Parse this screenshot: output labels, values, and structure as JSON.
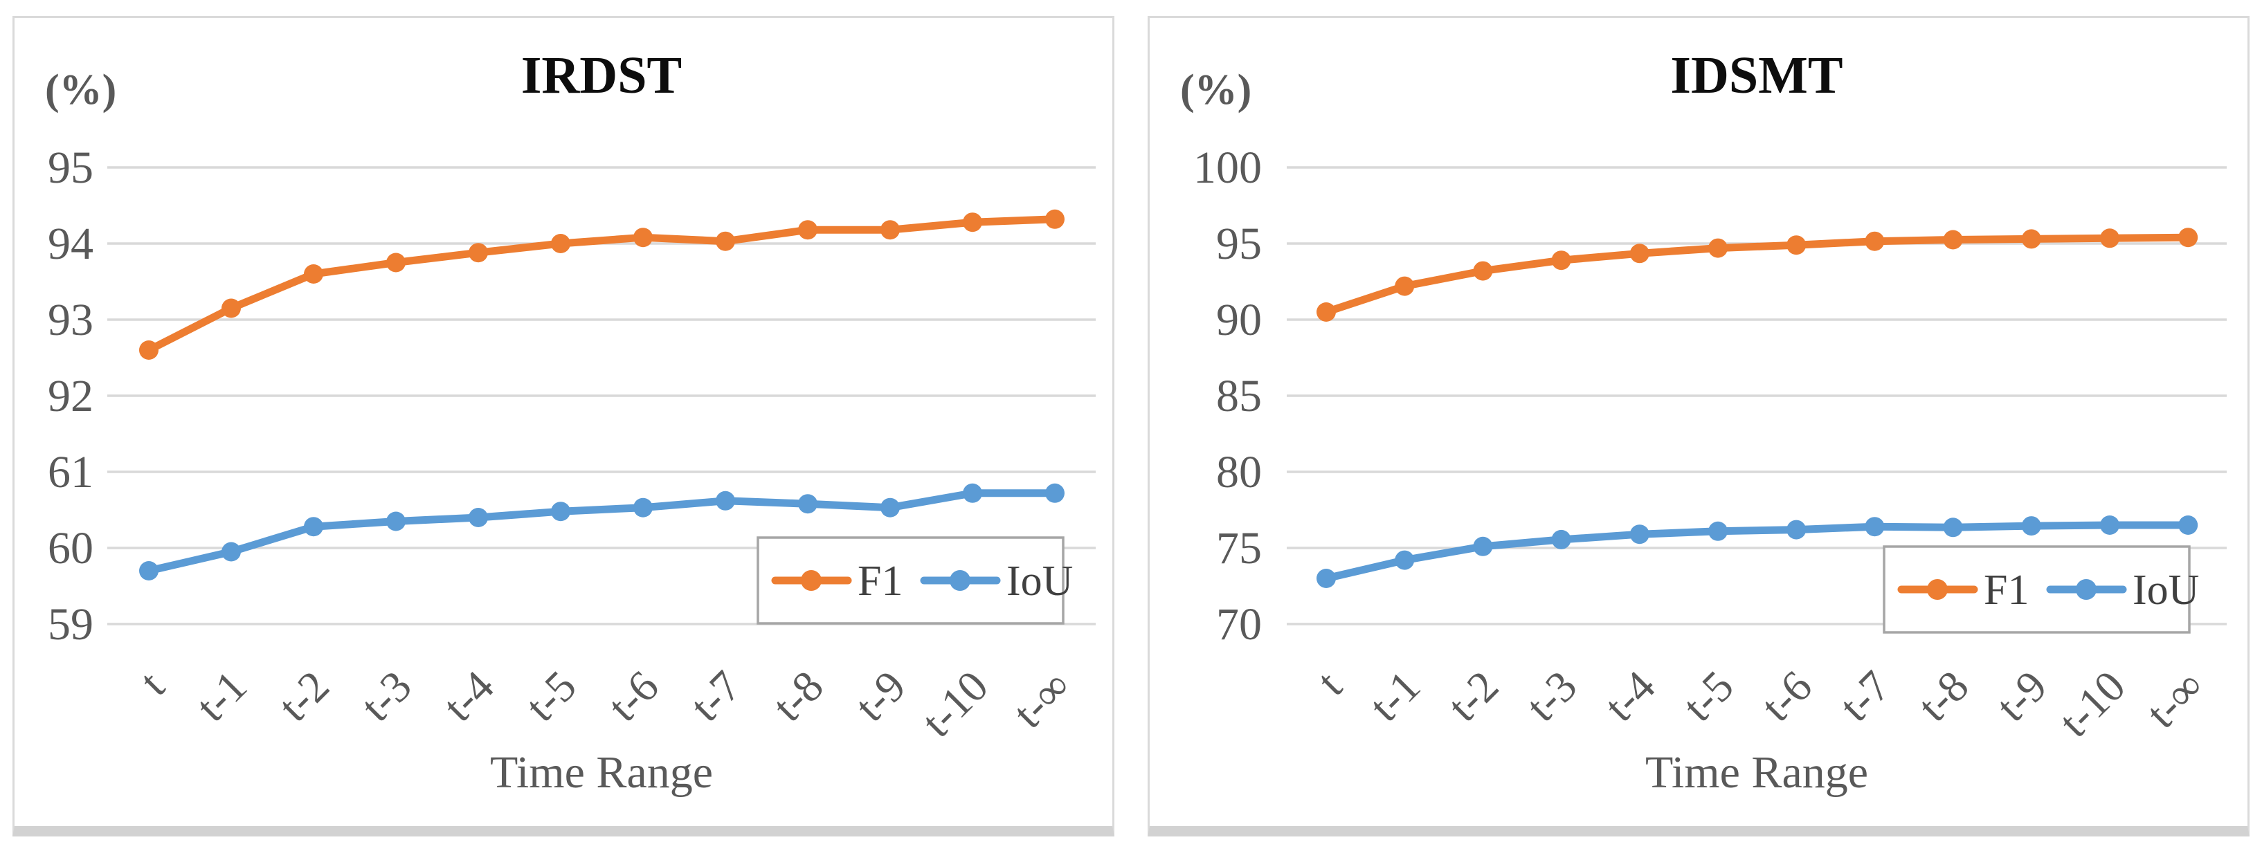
{
  "figure": {
    "background_color": "#ffffff",
    "panel_border_color": "#dadada",
    "panel_bottom_edge_color": "#d2d2d2",
    "gridline_color": "#d9d9d9",
    "axis_text_color": "#595959",
    "title_color": "#0d0d0d",
    "legend_border_color": "#a6a6a6",
    "legend_text_color": "#404040"
  },
  "chart_data": [
    {
      "type": "line",
      "title": "IRDST",
      "ylabel": "(%)",
      "xlabel": "Time Range",
      "grid": true,
      "legend_position": "bottom-right",
      "categories": [
        "t",
        "t-1",
        "t-2",
        "t-3",
        "t-4",
        "t-5",
        "t-6",
        "t-7",
        "t-8",
        "t-9",
        "t-10",
        "t-∞"
      ],
      "y_axis": {
        "broken": true,
        "tick_labels": [
          "95",
          "94",
          "93",
          "92",
          "61",
          "60",
          "59"
        ],
        "tick_values": [
          95,
          94,
          93,
          92,
          61,
          60,
          59
        ],
        "segments": [
          {
            "max": 95,
            "min": 92,
            "top_row": 0,
            "units_per_row": 1
          },
          {
            "max": 61,
            "min": 59,
            "top_row": 4,
            "units_per_row": 1
          }
        ],
        "upper_range": [
          92,
          95
        ],
        "lower_range": [
          59,
          61
        ]
      },
      "series": [
        {
          "name": "F1",
          "color": "#ED7D31",
          "values": [
            92.6,
            93.15,
            93.6,
            93.75,
            93.88,
            94.0,
            94.08,
            94.03,
            94.18,
            94.18,
            94.28,
            94.32
          ]
        },
        {
          "name": "IoU",
          "color": "#5B9BD5",
          "values": [
            59.7,
            59.95,
            60.28,
            60.35,
            60.4,
            60.48,
            60.53,
            60.62,
            60.58,
            60.53,
            60.72,
            60.72
          ]
        }
      ]
    },
    {
      "type": "line",
      "title": "IDSMT",
      "ylabel": "(%)",
      "xlabel": "Time Range",
      "grid": true,
      "legend_position": "bottom-right",
      "categories": [
        "t",
        "t-1",
        "t-2",
        "t-3",
        "t-4",
        "t-5",
        "t-6",
        "t-7",
        "t-8",
        "t-9",
        "t-10",
        "t-∞"
      ],
      "y_axis": {
        "broken": false,
        "tick_labels": [
          "100",
          "95",
          "90",
          "85",
          "80",
          "75",
          "70"
        ],
        "tick_values": [
          100,
          95,
          90,
          85,
          80,
          75,
          70
        ],
        "segments": [
          {
            "max": 100,
            "min": 70,
            "top_row": 0,
            "units_per_row": 5
          }
        ],
        "ylim": [
          70,
          100
        ]
      },
      "series": [
        {
          "name": "F1",
          "color": "#ED7D31",
          "values": [
            90.5,
            92.2,
            93.2,
            93.9,
            94.35,
            94.7,
            94.9,
            95.15,
            95.25,
            95.3,
            95.35,
            95.4
          ]
        },
        {
          "name": "IoU",
          "color": "#5B9BD5",
          "values": [
            73.0,
            74.2,
            75.1,
            75.55,
            75.9,
            76.1,
            76.2,
            76.4,
            76.35,
            76.45,
            76.5,
            76.5
          ]
        }
      ]
    }
  ]
}
